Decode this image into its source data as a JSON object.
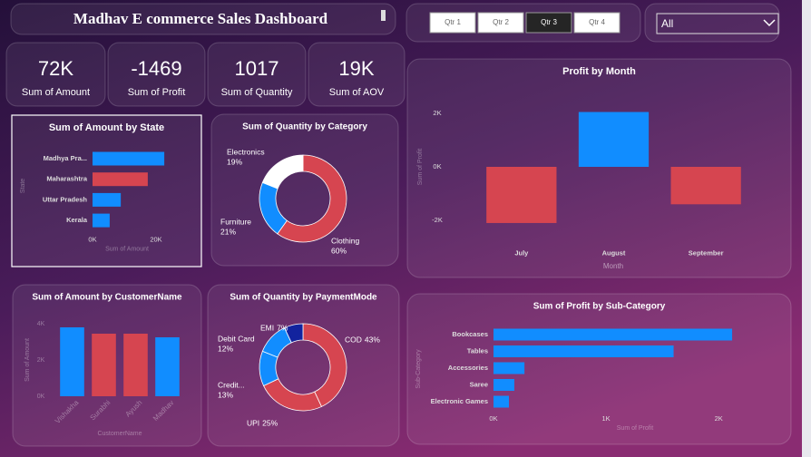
{
  "header": {
    "title": "Madhav E commerce Sales Dashboard"
  },
  "kpis": [
    {
      "value": "72K",
      "label": "Sum of Amount"
    },
    {
      "value": "-1469",
      "label": "Sum of Profit"
    },
    {
      "value": "1017",
      "label": "Sum of Quantity"
    },
    {
      "value": "19K",
      "label": "Sum of AOV"
    }
  ],
  "slicer": {
    "buttons": [
      "Qtr 1",
      "Qtr 2",
      "Qtr 3",
      "Qtr 4"
    ],
    "selected": 2,
    "dropdown": "All"
  },
  "chart_data": [
    {
      "type": "hbar",
      "title": "Sum of Amount by State",
      "xlabel": "Sum of Amount",
      "ylabel": "State",
      "categories": [
        "Madhya Pra...",
        "Maharashtra",
        "Uttar Pradesh",
        "Kerala"
      ],
      "values": [
        22600,
        17400,
        8900,
        5400
      ],
      "colors": [
        "#118dff",
        "#d64550",
        "#118dff",
        "#118dff"
      ],
      "xlim": [
        0,
        24000
      ],
      "xticks": [
        {
          "value": 0,
          "label": "0K"
        },
        {
          "value": 20000,
          "label": "20K"
        }
      ],
      "grid": false
    },
    {
      "type": "donut",
      "title": "Sum of Quantity by Category",
      "categories": [
        "Clothing",
        "Furniture",
        "Electronics"
      ],
      "values": [
        60,
        21,
        19
      ],
      "value_labels": [
        "60%",
        "21%",
        "19%"
      ],
      "colors": [
        "#d64550",
        "#118dff",
        "#ffffff"
      ]
    },
    {
      "type": "vbar",
      "title": "Profit by Month",
      "xlabel": "Month",
      "ylabel": "Sum of Profit",
      "categories": [
        "July",
        "August",
        "September"
      ],
      "values": [
        -2100,
        2050,
        -1400
      ],
      "colors": [
        "#d64550",
        "#118dff",
        "#d64550"
      ],
      "ylim": [
        -2600,
        2500
      ],
      "yticks": [
        {
          "value": -2000,
          "label": "-2K"
        },
        {
          "value": 0,
          "label": "0K"
        },
        {
          "value": 2000,
          "label": "2K"
        }
      ],
      "grid": false
    },
    {
      "type": "vbar",
      "title": "Sum of Amount by CustomerName",
      "xlabel": "CustomerName",
      "ylabel": "Sum of Amount",
      "categories": [
        "Vishakha",
        "Surabhi",
        "Ayush",
        "Madhav"
      ],
      "values": [
        3800,
        3450,
        3450,
        3250
      ],
      "colors": [
        "#118dff",
        "#d64550",
        "#d64550",
        "#118dff"
      ],
      "ylim": [
        0,
        4500
      ],
      "yticks": [
        {
          "value": 0,
          "label": "0K"
        },
        {
          "value": 2000,
          "label": "2K"
        },
        {
          "value": 4000,
          "label": "4K"
        }
      ],
      "grid": false
    },
    {
      "type": "donut",
      "title": "Sum of Quantity by PaymentMode",
      "categories": [
        "COD",
        "UPI",
        "Credit...",
        "Debit Card",
        "EMI"
      ],
      "values": [
        43,
        25,
        13,
        12,
        7
      ],
      "value_labels": [
        "43%",
        "25%",
        "13%",
        "12%",
        "7%"
      ],
      "colors": [
        "#d64550",
        "#d64550",
        "#118dff",
        "#118dff",
        "#12239e"
      ]
    },
    {
      "type": "hbar",
      "title": "Sum of Profit by Sub-Category",
      "xlabel": "Sum of Profit",
      "ylabel": "Sub-Category",
      "categories": [
        "Bookcases",
        "Tables",
        "Accessories",
        "Saree",
        "Electronic Games"
      ],
      "values": [
        2120,
        1600,
        275,
        185,
        137
      ],
      "colors": [
        "#118dff",
        "#118dff",
        "#118dff",
        "#118dff",
        "#118dff"
      ],
      "xlim": [
        0,
        2200
      ],
      "xticks": [
        {
          "value": 0,
          "label": "0K"
        },
        {
          "value": 1000,
          "label": "1K"
        },
        {
          "value": 2000,
          "label": "2K"
        }
      ],
      "grid": false
    }
  ]
}
